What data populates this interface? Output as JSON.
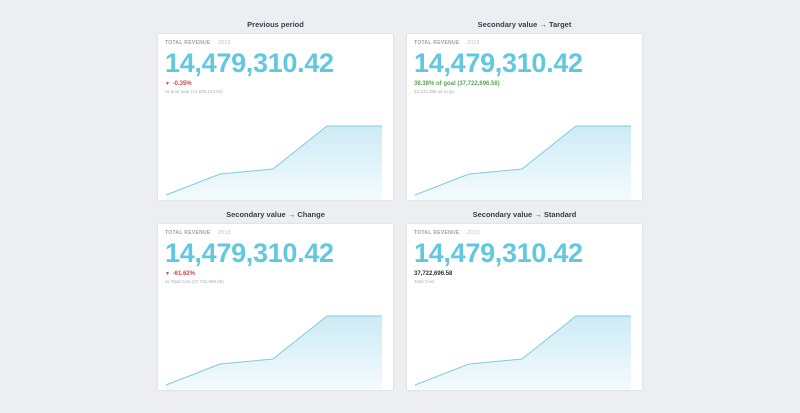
{
  "colors": {
    "accent": "#62c8df",
    "negative": "#d0464b",
    "positive": "#5aa55a",
    "area_fill": "#d6eff7",
    "background": "#eceef1"
  },
  "cards": [
    {
      "title": "Previous period",
      "label": "TOTAL REVENUE",
      "year": "2013",
      "value": "14,479,310.42",
      "secondary": "-0.35%",
      "secondary_icon": "triangle-down-icon",
      "subtext": "vs prior year (14,530,104.84)"
    },
    {
      "title": "Secondary value → Target",
      "label": "TOTAL REVENUE",
      "year": "2013",
      "value": "14,479,310.42",
      "secondary": "38.38% of goal (37,722,696.58)",
      "subtext": "23,243,386.16 to go"
    },
    {
      "title": "Secondary value → Change",
      "label": "TOTAL REVENUE",
      "year": "2013",
      "value": "14,479,310.42",
      "secondary": "-61.62%",
      "secondary_icon": "triangle-down-icon",
      "subtext": "vs Total Cost (37,722,696.58)"
    },
    {
      "title": "Secondary value → Standard",
      "label": "TOTAL REVENUE",
      "year": "2013",
      "value": "14,479,310.42",
      "secondary": "37,722,696.58",
      "subtext": "Total Cost"
    }
  ],
  "sparkline": {
    "description": "cumulative trend line with light fill",
    "values": [
      0,
      0.31,
      0.37,
      1.0,
      1.0
    ]
  }
}
